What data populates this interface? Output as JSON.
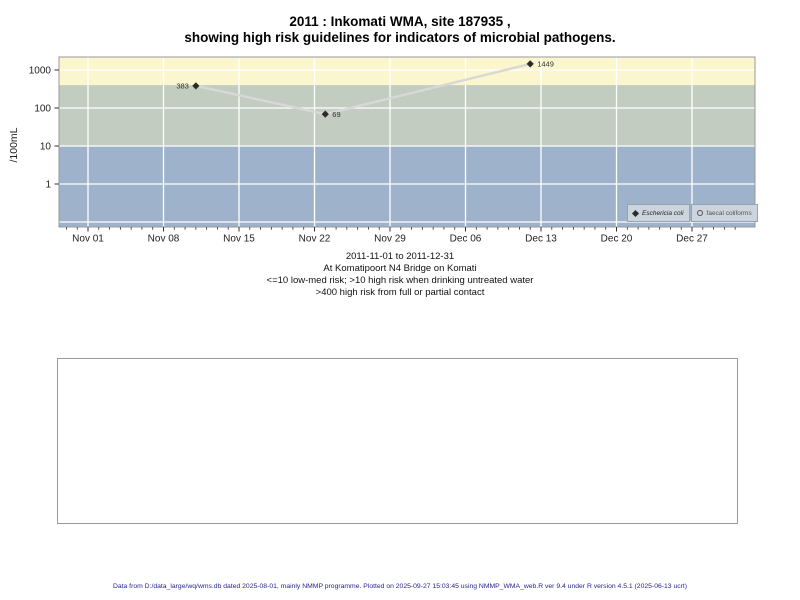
{
  "title": {
    "line1": "2011 : Inkomati WMA, site 187935 ,",
    "line2": "showing high risk guidelines for indicators of microbial pathogens."
  },
  "chart_data": {
    "type": "scatter",
    "title": "2011 : Inkomati WMA, site 187935 , showing high risk guidelines for indicators of microbial pathogens.",
    "ylabel": "/100mL",
    "y_scale": "log",
    "ylim": [
      0.074,
      2200
    ],
    "y_ticks": [
      1,
      10,
      100,
      1000
    ],
    "y_gridlines": [
      0.1,
      1,
      10,
      100,
      1000
    ],
    "x_range": [
      "2011-11-01",
      "2011-12-31"
    ],
    "x_ticks": [
      "Nov 01",
      "Nov 08",
      "Nov 15",
      "Nov 22",
      "Nov 29",
      "Dec 06",
      "Dec 13",
      "Dec 20",
      "Dec 27"
    ],
    "grid": true,
    "legend_position": "bottom-right",
    "bands": [
      {
        "label": ">400 high risk from full or partial contact",
        "min": 400,
        "max": 2200,
        "color": "#fbf6ce"
      },
      {
        "label": ">10 high risk when drinking untreated water",
        "min": 10,
        "max": 400,
        "color": "#c3ccc0"
      },
      {
        "label": "<=10 low-med risk",
        "min": 0.074,
        "max": 10,
        "color": "#9fb2cb"
      }
    ],
    "series": [
      {
        "name": "Eschericia coli",
        "marker": "filled-diamond",
        "points": [
          {
            "date": "2011-11-11",
            "day": 10,
            "value": 383,
            "label_side": "left"
          },
          {
            "date": "2011-11-23",
            "day": 22,
            "value": 69,
            "label_side": "right"
          },
          {
            "date": "2011-12-12",
            "day": 41,
            "value": 1449,
            "label_side": "right"
          }
        ]
      },
      {
        "name": "faecal coliforms",
        "marker": "open-circle",
        "points": []
      }
    ],
    "line_color": "#d8d8d8",
    "point_color": "#2b2b2b"
  },
  "legend": {
    "items": [
      {
        "icon": "filled-diamond-icon",
        "label": "Eschericia coli"
      },
      {
        "icon": "open-circle-icon",
        "label": "faecal coliforms"
      }
    ]
  },
  "caption": {
    "line1": "2011-11-01 to 2011-12-31",
    "line2": "At Komatipoort N4 Bridge on Komati",
    "line3": "<=10 low-med risk; >10 high risk when drinking untreated water",
    "line4": ">400 high risk from full or partial contact"
  },
  "footer": "Data from D:/data_large/wq/wms.db dated 2025-08-01, mainly NMMP programme. Plotted on 2025-09-27 15:03:45 using NMMP_WMA_web.R ver 9.4 under R version 4.5.1 (2025-06-13 ucrt)"
}
